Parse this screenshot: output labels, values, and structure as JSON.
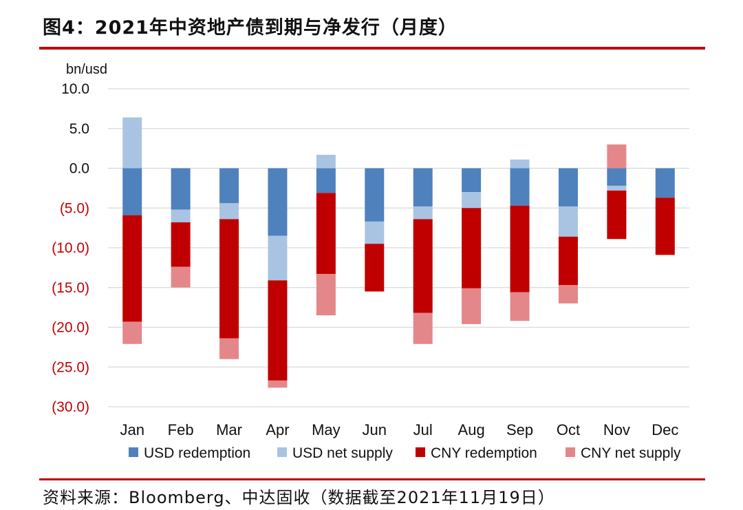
{
  "title": "图4：2021年中资地产债到期与净发行（月度）",
  "source": "资料来源：Bloomberg、中达固收（数据截至2021年11月19日）",
  "chart_data": {
    "type": "bar",
    "stacked": true,
    "ylabel": "bn/usd",
    "ylim": [
      -30,
      10
    ],
    "yticks": [
      10,
      5,
      0,
      -5,
      -10,
      -15,
      -20,
      -25,
      -30
    ],
    "ytick_labels": [
      "10.0",
      "5.0",
      "0.0",
      "(5.0)",
      "(10.0)",
      "(15.0)",
      "(20.0)",
      "(25.0)",
      "(30.0)"
    ],
    "ytick_colors": {
      "positive": "#111111",
      "negative": "#c00000"
    },
    "grid": true,
    "legend": "bottom",
    "categories": [
      "Jan",
      "Feb",
      "Mar",
      "Apr",
      "May",
      "Jun",
      "Jul",
      "Aug",
      "Sep",
      "Oct",
      "Nov",
      "Dec"
    ],
    "series": [
      {
        "name": "USD redemption",
        "color": "#4f81bd",
        "values": [
          -5.9,
          -5.2,
          -4.4,
          -8.5,
          -3.1,
          -6.7,
          -4.8,
          -3.0,
          -4.7,
          -4.8,
          -2.2,
          -3.7
        ]
      },
      {
        "name": "USD net supply",
        "color": "#a9c4e3",
        "values": [
          6.4,
          -1.6,
          -2.0,
          -5.6,
          1.7,
          -2.8,
          -1.6,
          -2.0,
          1.1,
          -3.8,
          -0.6,
          0.0
        ]
      },
      {
        "name": "CNY redemption",
        "color": "#c00000",
        "values": [
          -13.4,
          -5.6,
          -15.0,
          -12.6,
          -10.2,
          -6.0,
          -11.8,
          -10.1,
          -10.9,
          -6.1,
          -6.1,
          -7.2
        ]
      },
      {
        "name": "CNY net supply",
        "color": "#e4878a",
        "values": [
          -2.8,
          -2.6,
          -2.6,
          -0.9,
          -5.2,
          0.0,
          -3.9,
          -4.5,
          -3.6,
          -2.3,
          3.0,
          0.0
        ]
      }
    ]
  }
}
